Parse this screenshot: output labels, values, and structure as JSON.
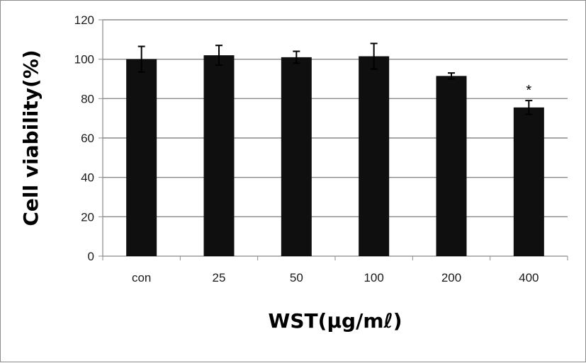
{
  "chart_data": {
    "type": "bar",
    "title": "",
    "xlabel": "WST(μg/mℓ)",
    "ylabel": "Cell viability(%)",
    "categories": [
      "con",
      "25",
      "50",
      "100",
      "200",
      "400"
    ],
    "values": [
      100,
      102,
      101,
      101.5,
      91.5,
      75.5
    ],
    "errors": [
      6.5,
      5,
      3,
      6.5,
      1.5,
      3.5
    ],
    "annotations": [
      "",
      "",
      "",
      "",
      "",
      "*"
    ],
    "ylim": [
      0,
      120
    ],
    "yticks": [
      0,
      20,
      40,
      60,
      80,
      100,
      120
    ],
    "grid": true,
    "bar_color": "#0f0f0f",
    "grid_color": "#8a8a8a",
    "legend": "none"
  }
}
